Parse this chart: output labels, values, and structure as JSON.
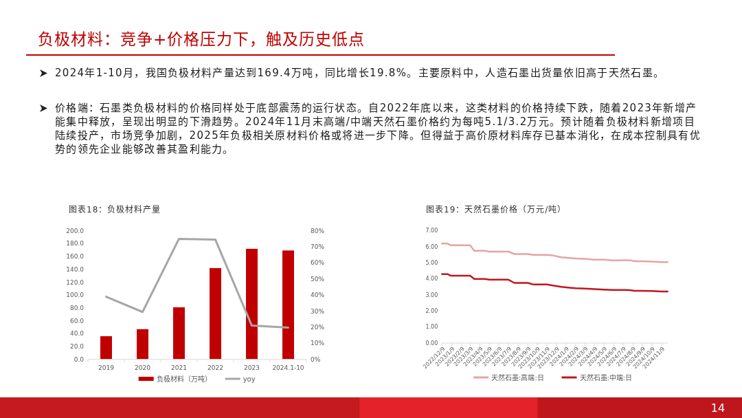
{
  "chart_data": [
    {
      "type": "other",
      "title": "负极材料：竞争+价格压力下，触及历史低点",
      "annotations": [
        "2024年1-10月，我国负极材料产量达到169.4万吨，同比增长19.8%。主要原料中，人造石墨出货量依旧高于天然石墨。",
        "价格端：石墨类负极材料的价格同样处于底部震荡的运行状态。自2022年底以来，这类材料的价格持续下跌，随着2023年新增产能集中释放，呈现出明显的下滑趋势。2024年11月末高端/中端天然石墨价格约为每吨5.1/3.2万元。预计随着负极材料新增项目陆续投产，市场竞争加剧，2025年负极相关原材料价格或将进一步下降。但得益于高价原材料库存已基本消化，在成本控制具有优势的领先企业能够改善其盈利能力。",
        "14"
      ]
    },
    {
      "type": "bar",
      "title": "图表18：负极材料产量",
      "categories": [
        "2019",
        "2020",
        "2021",
        "2022",
        "2023",
        "2024.1-10"
      ],
      "series": [
        {
          "name": "负极材料（万吨）",
          "color": "#c00000",
          "values": [
            36,
            47,
            81,
            142,
            172,
            169.4
          ]
        },
        {
          "name": "yoy",
          "type": "line",
          "axis": "y2",
          "color": "#a6a6a6",
          "values": [
            39,
            29.5,
            75,
            74.5,
            21,
            19.8
          ]
        }
      ],
      "ylim": [
        0,
        200
      ],
      "yticks": [
        {
          "value": 0,
          "label": "0.0"
        },
        {
          "value": 20,
          "label": "20.0"
        },
        {
          "value": 40,
          "label": "40.0"
        },
        {
          "value": 60,
          "label": "60.0"
        },
        {
          "value": 80,
          "label": "80.0"
        },
        {
          "value": 100,
          "label": "100.0"
        },
        {
          "value": 120,
          "label": "120.0"
        },
        {
          "value": 140,
          "label": "140.0"
        },
        {
          "value": 160,
          "label": "160.0"
        },
        {
          "value": 180,
          "label": "180.0"
        },
        {
          "value": 200,
          "label": "200.0"
        }
      ],
      "y2lim": [
        0,
        80
      ],
      "y2ticks": [
        {
          "value": 0,
          "label": "0%"
        },
        {
          "value": 10,
          "label": "10%"
        },
        {
          "value": 20,
          "label": "20%"
        },
        {
          "value": 30,
          "label": "30%"
        },
        {
          "value": 40,
          "label": "40%"
        },
        {
          "value": 50,
          "label": "50%"
        },
        {
          "value": 60,
          "label": "60%"
        },
        {
          "value": 70,
          "label": "70%"
        },
        {
          "value": 80,
          "label": "80%"
        }
      ],
      "legend": "bottom"
    },
    {
      "type": "line",
      "title": "图表19：天然石墨价格（万元/吨）",
      "x": [
        "2022-12-09",
        "2022-12-27",
        "2023-01-06",
        "2023-03-09",
        "2023-03-22",
        "2023-04-25",
        "2023-05-09",
        "2023-07-09",
        "2023-07-28",
        "2023-09-09",
        "2023-09-27",
        "2023-11-09",
        "2023-12-01",
        "2023-12-25",
        "2024-01-20",
        "2024-02-09",
        "2024-03-09",
        "2024-04-09",
        "2024-05-09",
        "2024-06-05",
        "2024-07-01",
        "2024-07-12",
        "2024-07-30",
        "2024-08-15",
        "2024-09-09",
        "2024-10-09",
        "2024-11-09",
        "2024-11-28"
      ],
      "series": [
        {
          "name": "天然石墨:高端:日",
          "color": "#e4a4a4",
          "values": [
            6.2,
            6.2,
            6.1,
            6.1,
            5.75,
            5.75,
            5.7,
            5.7,
            5.55,
            5.55,
            5.5,
            5.5,
            5.45,
            5.35,
            5.3,
            5.27,
            5.25,
            5.2,
            5.2,
            5.15,
            5.15,
            5.17,
            5.17,
            5.1,
            5.1,
            5.08,
            5.05,
            5.05
          ]
        },
        {
          "name": "天然石墨:中端:日",
          "color": "#c0161e",
          "values": [
            4.3,
            4.3,
            4.2,
            4.2,
            4.0,
            4.0,
            3.95,
            3.95,
            3.75,
            3.75,
            3.65,
            3.65,
            3.58,
            3.5,
            3.45,
            3.42,
            3.4,
            3.36,
            3.33,
            3.31,
            3.31,
            3.31,
            3.3,
            3.26,
            3.26,
            3.25,
            3.22,
            3.22
          ]
        }
      ],
      "xlim": [
        "2022-12-09",
        "2024-11-28"
      ],
      "xticks": [
        {
          "value": "2022-12-09",
          "label": "2022/12/9"
        },
        {
          "value": "2023-01-09",
          "label": "2023/1/9"
        },
        {
          "value": "2023-02-09",
          "label": "2023/2/9"
        },
        {
          "value": "2023-03-09",
          "label": "2023/3/9"
        },
        {
          "value": "2023-04-09",
          "label": "2023/4/9"
        },
        {
          "value": "2023-05-09",
          "label": "2023/5/9"
        },
        {
          "value": "2023-06-09",
          "label": "2023/6/9"
        },
        {
          "value": "2023-07-09",
          "label": "2023/7/9"
        },
        {
          "value": "2023-08-09",
          "label": "2023/8/9"
        },
        {
          "value": "2023-09-09",
          "label": "2023/9/9"
        },
        {
          "value": "2023-10-09",
          "label": "2023/10/9"
        },
        {
          "value": "2023-11-09",
          "label": "2023/11/9"
        },
        {
          "value": "2023-12-09",
          "label": "2023/12/9"
        },
        {
          "value": "2024-01-09",
          "label": "2024/1/9"
        },
        {
          "value": "2024-02-09",
          "label": "2024/2/9"
        },
        {
          "value": "2024-03-09",
          "label": "2024/3/9"
        },
        {
          "value": "2024-04-09",
          "label": "2024/4/9"
        },
        {
          "value": "2024-05-09",
          "label": "2024/5/9"
        },
        {
          "value": "2024-06-09",
          "label": "2024/6/9"
        },
        {
          "value": "2024-07-09",
          "label": "2024/7/9"
        },
        {
          "value": "2024-08-09",
          "label": "2024/8/9"
        },
        {
          "value": "2024-09-09",
          "label": "2024/9/9"
        },
        {
          "value": "2024-10-09",
          "label": "2024/10/9"
        },
        {
          "value": "2024-11-09",
          "label": "2024/11/9"
        }
      ],
      "ylim": [
        0,
        7
      ],
      "yticks": [
        {
          "value": 0,
          "label": "0.00"
        },
        {
          "value": 1,
          "label": "1.00"
        },
        {
          "value": 2,
          "label": "2.00"
        },
        {
          "value": 3,
          "label": "3.00"
        },
        {
          "value": 4,
          "label": "4.00"
        },
        {
          "value": 5,
          "label": "5.00"
        },
        {
          "value": 6,
          "label": "6.00"
        },
        {
          "value": 7,
          "label": "7.00"
        }
      ],
      "legend": "bottom"
    }
  ]
}
